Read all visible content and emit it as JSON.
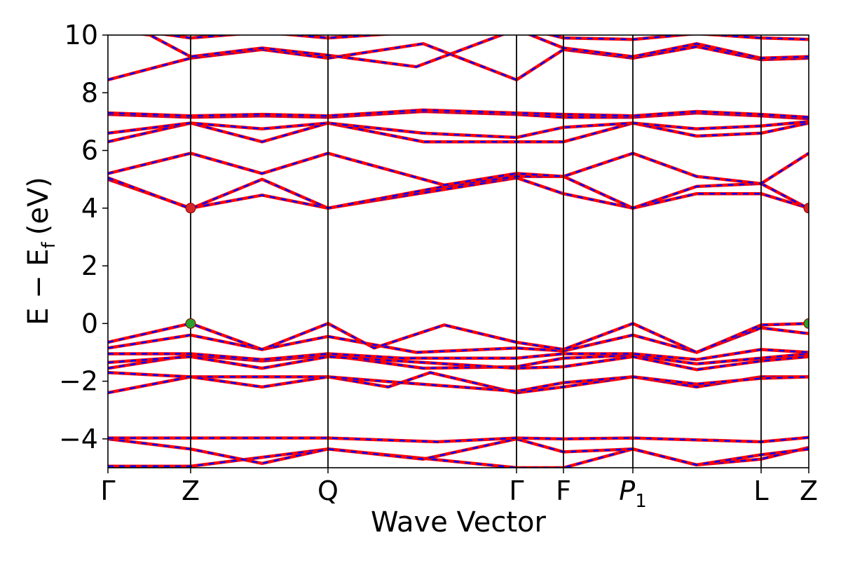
{
  "chart_data": {
    "type": "line",
    "xlabel": "Wave Vector",
    "ylabel": "E − E",
    "ylabel_sub": "f",
    "ylabel_unit": "(eV)",
    "ylim": [
      -5,
      10
    ],
    "yticks": [
      -4,
      -2,
      0,
      2,
      4,
      6,
      8,
      10
    ],
    "xlim": [
      0,
      1
    ],
    "high_symmetry_points": [
      {
        "label": "Γ",
        "x": 0.0
      },
      {
        "label": "Z",
        "x": 0.118
      },
      {
        "label": "Q",
        "x": 0.314
      },
      {
        "label": "Γ",
        "x": 0.583
      },
      {
        "label": "F",
        "x": 0.65
      },
      {
        "label": "P",
        "sub": "1",
        "x": 0.749
      },
      {
        "label": "L",
        "x": 0.932
      },
      {
        "label": "Z",
        "x": 1.0
      }
    ],
    "series_colors": {
      "primary": "#ff0000",
      "overlay": "#0000ff"
    },
    "bands": [
      {
        "x": [
          0,
          0.118,
          0.314,
          0.44,
          0.583,
          0.65,
          0.749,
          0.84,
          0.932,
          1.0
        ],
        "y": [
          -4.95,
          -4.95,
          -4.35,
          -4.65,
          -5.0,
          -5.0,
          -4.35,
          -4.9,
          -4.7,
          -4.3
        ]
      },
      {
        "x": [
          0,
          0.118,
          0.22,
          0.314,
          0.45,
          0.583,
          0.65,
          0.749,
          0.84,
          0.932,
          1.0
        ],
        "y": [
          -4.0,
          -4.35,
          -4.85,
          -4.35,
          -4.7,
          -4.0,
          -4.45,
          -4.35,
          -4.9,
          -4.55,
          -4.35
        ]
      },
      {
        "x": [
          0,
          0.118,
          0.314,
          0.47,
          0.583,
          0.65,
          0.749,
          0.932,
          1.0
        ],
        "y": [
          -3.97,
          -3.97,
          -3.97,
          -4.1,
          -3.97,
          -4.0,
          -3.97,
          -4.1,
          -3.95
        ]
      },
      {
        "x": [
          0,
          0.118,
          0.22,
          0.314,
          0.4,
          0.46,
          0.583,
          0.65,
          0.749,
          0.84,
          0.932,
          1.0
        ],
        "y": [
          -2.4,
          -1.85,
          -1.85,
          -1.85,
          -2.2,
          -1.7,
          -2.4,
          -2.2,
          -1.85,
          -2.2,
          -1.85,
          -1.85
        ]
      },
      {
        "x": [
          0,
          0.118,
          0.22,
          0.314,
          0.42,
          0.583,
          0.65,
          0.749,
          0.84,
          0.932,
          1.0
        ],
        "y": [
          -1.7,
          -1.85,
          -2.2,
          -1.85,
          -2.05,
          -2.35,
          -2.05,
          -1.85,
          -2.1,
          -1.9,
          -1.85
        ]
      },
      {
        "x": [
          0,
          0.118,
          0.22,
          0.314,
          0.45,
          0.583,
          0.65,
          0.749,
          0.84,
          0.932,
          1.0
        ],
        "y": [
          -1.55,
          -1.1,
          -1.3,
          -1.1,
          -1.55,
          -1.5,
          -1.2,
          -1.1,
          -1.4,
          -1.2,
          -1.05
        ]
      },
      {
        "x": [
          0,
          0.118,
          0.22,
          0.314,
          0.45,
          0.583,
          0.65,
          0.749,
          0.84,
          0.932,
          1.0
        ],
        "y": [
          -1.35,
          -1.15,
          -1.55,
          -1.15,
          -1.35,
          -1.55,
          -1.5,
          -1.15,
          -1.6,
          -1.3,
          -1.15
        ]
      },
      {
        "x": [
          0,
          0.118,
          0.22,
          0.314,
          0.42,
          0.583,
          0.65,
          0.749,
          0.84,
          0.932,
          1.0
        ],
        "y": [
          -1.05,
          -1.05,
          -1.25,
          -1.05,
          -1.2,
          -1.2,
          -1.05,
          -1.05,
          -1.25,
          -0.9,
          -1.0
        ]
      },
      {
        "x": [
          0,
          0.118,
          0.22,
          0.314,
          0.44,
          0.583,
          0.65,
          0.749,
          0.84,
          0.932,
          1.0
        ],
        "y": [
          -0.85,
          -0.4,
          -0.9,
          -0.45,
          -1.0,
          -0.85,
          -0.95,
          -0.4,
          -1.0,
          -0.15,
          -0.35
        ]
      },
      {
        "x": [
          0,
          0.118,
          0.22,
          0.314,
          0.38,
          0.48,
          0.583,
          0.65,
          0.749,
          0.84,
          0.932,
          1.0
        ],
        "y": [
          -0.65,
          0.0,
          -0.9,
          0.0,
          -0.85,
          -0.05,
          -0.65,
          -0.9,
          0.0,
          -1.0,
          -0.05,
          0.0
        ]
      },
      {
        "x": [
          0,
          0.118,
          0.22,
          0.314,
          0.48,
          0.583,
          0.65,
          0.749,
          0.84,
          0.932,
          1.0
        ],
        "y": [
          5.0,
          4.0,
          4.45,
          4.0,
          4.65,
          5.05,
          4.5,
          4.0,
          4.5,
          4.5,
          4.0
        ]
      },
      {
        "x": [
          0,
          0.118,
          0.22,
          0.314,
          0.48,
          0.583,
          0.65,
          0.749,
          0.84,
          0.932,
          1.0
        ],
        "y": [
          5.05,
          3.98,
          5.0,
          4.0,
          4.75,
          5.1,
          5.1,
          4.0,
          4.75,
          4.85,
          3.98
        ]
      },
      {
        "x": [
          0,
          0.118,
          0.22,
          0.314,
          0.48,
          0.583,
          0.65,
          0.749,
          0.84,
          0.932,
          1.0
        ],
        "y": [
          5.2,
          5.9,
          5.2,
          5.9,
          4.8,
          5.2,
          5.1,
          5.9,
          5.1,
          4.85,
          5.9
        ]
      },
      {
        "x": [
          0,
          0.118,
          0.22,
          0.314,
          0.45,
          0.583,
          0.65,
          0.749,
          0.84,
          0.932,
          1.0
        ],
        "y": [
          6.3,
          6.95,
          6.3,
          6.95,
          6.3,
          6.3,
          6.3,
          6.95,
          6.5,
          6.6,
          6.95
        ]
      },
      {
        "x": [
          0,
          0.118,
          0.22,
          0.314,
          0.45,
          0.583,
          0.65,
          0.749,
          0.84,
          0.932,
          1.0
        ],
        "y": [
          6.6,
          6.95,
          6.75,
          6.95,
          6.6,
          6.45,
          6.8,
          6.95,
          6.75,
          6.85,
          7.0
        ]
      },
      {
        "x": [
          0,
          0.118,
          0.22,
          0.314,
          0.45,
          0.583,
          0.65,
          0.749,
          0.84,
          0.932,
          1.0
        ],
        "y": [
          7.25,
          7.15,
          7.2,
          7.15,
          7.35,
          7.25,
          7.15,
          7.15,
          7.3,
          7.2,
          7.1
        ]
      },
      {
        "x": [
          0,
          0.118,
          0.22,
          0.314,
          0.45,
          0.583,
          0.65,
          0.749,
          0.84,
          0.932,
          1.0
        ],
        "y": [
          7.3,
          7.2,
          7.25,
          7.2,
          7.4,
          7.3,
          7.25,
          7.2,
          7.35,
          7.25,
          7.15
        ]
      },
      {
        "x": [
          0,
          0.118,
          0.22,
          0.314,
          0.45,
          0.583,
          0.65,
          0.749,
          0.84,
          0.932,
          1.0
        ],
        "y": [
          8.45,
          9.2,
          9.5,
          9.2,
          9.7,
          8.45,
          9.5,
          9.2,
          9.6,
          9.15,
          9.2
        ]
      },
      {
        "x": [
          0,
          0.06,
          0.118,
          0.22,
          0.314,
          0.44,
          0.583,
          0.65,
          0.749,
          0.84,
          0.932,
          1.0
        ],
        "y": [
          10.2,
          10.0,
          9.25,
          9.55,
          9.3,
          8.9,
          10.2,
          9.55,
          9.25,
          9.7,
          9.2,
          9.25
        ]
      },
      {
        "x": [
          0,
          0.118,
          0.22,
          0.314,
          0.44,
          0.583,
          0.65,
          0.749,
          0.84,
          0.932,
          1.0
        ],
        "y": [
          10.3,
          9.9,
          10.1,
          9.9,
          10.1,
          10.3,
          9.9,
          9.85,
          10.05,
          9.9,
          9.85
        ]
      }
    ],
    "markers": [
      {
        "x": 0.118,
        "y": 4.0,
        "color": "#d62728"
      },
      {
        "x": 0.118,
        "y": 0.0,
        "color": "#2ca02c"
      },
      {
        "x": 1.0,
        "y": 4.0,
        "color": "#d62728"
      },
      {
        "x": 1.0,
        "y": 0.0,
        "color": "#2ca02c"
      }
    ]
  }
}
